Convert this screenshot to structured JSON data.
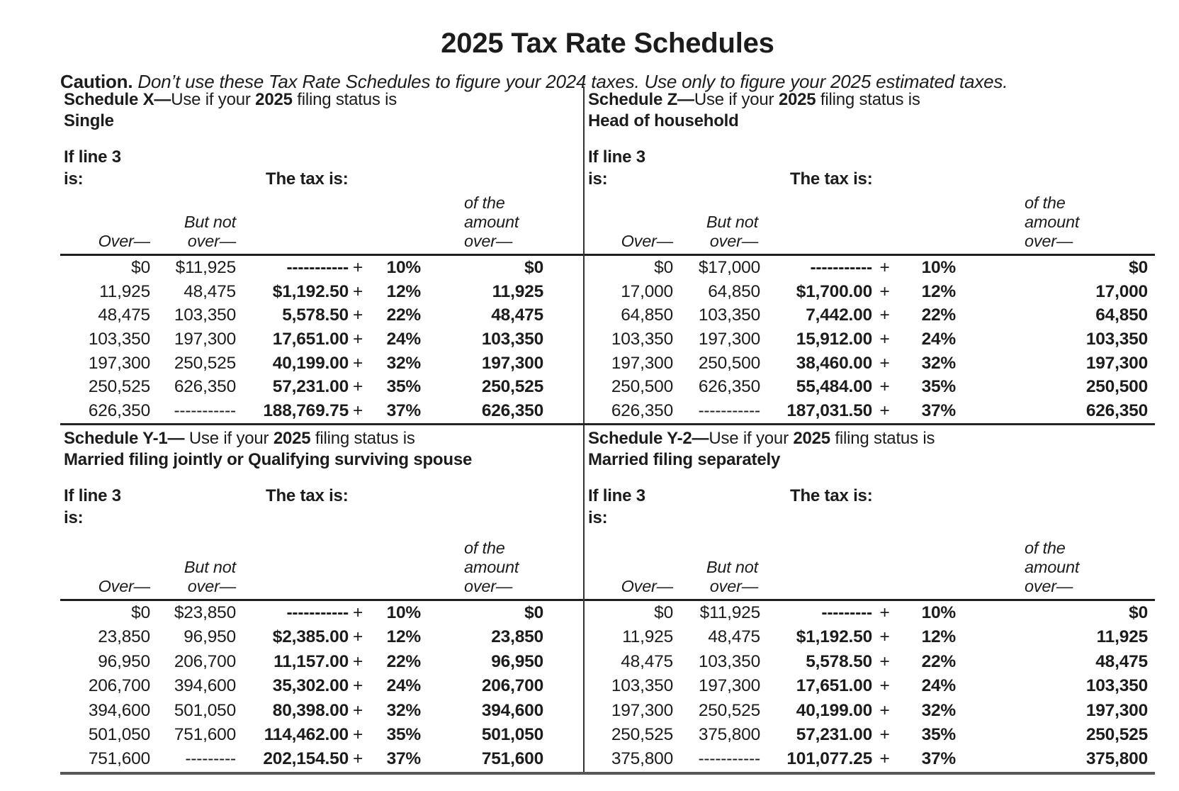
{
  "title": "2025 Tax Rate Schedules",
  "caution": {
    "label": "Caution.",
    "text": " Don’t use these Tax Rate Schedules to figure your 2024 taxes. Use only to figure your 2025 estimated taxes."
  },
  "labels": {
    "if_line": "If line 3",
    "is": "is:",
    "tax_is": "The tax is:",
    "over_em": "Over—",
    "but_not": "But not",
    "over_dash": "over—",
    "of_the": "of the",
    "amount": "amount",
    "plus": "+"
  },
  "schedules": [
    {
      "title_bold": "Schedule X—",
      "title_mid": "Use if your ",
      "title_year": "2025",
      "title_rest": " filing status is",
      "status": "Single",
      "rows": [
        {
          "over": "$0",
          "but_not": "$11,925",
          "base": "-----------",
          "rate": "10%",
          "of_amount": "$0"
        },
        {
          "over": "11,925",
          "but_not": "48,475",
          "base": "$1,192.50",
          "rate": "12%",
          "of_amount": "11,925"
        },
        {
          "over": "48,475",
          "but_not": "103,350",
          "base": "5,578.50",
          "rate": "22%",
          "of_amount": "48,475"
        },
        {
          "over": "103,350",
          "but_not": "197,300",
          "base": "17,651.00",
          "rate": "24%",
          "of_amount": "103,350"
        },
        {
          "over": "197,300",
          "but_not": "250,525",
          "base": "40,199.00",
          "rate": "32%",
          "of_amount": "197,300"
        },
        {
          "over": "250,525",
          "but_not": "626,350",
          "base": "57,231.00",
          "rate": "35%",
          "of_amount": "250,525"
        },
        {
          "over": "626,350",
          "but_not": "-----------",
          "base": "188,769.75",
          "rate": "37%",
          "of_amount": "626,350"
        }
      ]
    },
    {
      "title_bold": "Schedule Z—",
      "title_mid": "Use if your ",
      "title_year": "2025",
      "title_rest": " filing status is",
      "status": "Head of household",
      "rows": [
        {
          "over": "$0",
          "but_not": "$17,000",
          "base": "-----------",
          "rate": "10%",
          "of_amount": "$0"
        },
        {
          "over": "17,000",
          "but_not": "64,850",
          "base": "$1,700.00",
          "rate": "12%",
          "of_amount": "17,000"
        },
        {
          "over": "64,850",
          "but_not": "103,350",
          "base": "7,442.00",
          "rate": "22%",
          "of_amount": "64,850"
        },
        {
          "over": "103,350",
          "but_not": "197,300",
          "base": "15,912.00",
          "rate": "24%",
          "of_amount": "103,350"
        },
        {
          "over": "197,300",
          "but_not": "250,500",
          "base": "38,460.00",
          "rate": "32%",
          "of_amount": "197,300"
        },
        {
          "over": "250,500",
          "but_not": "626,350",
          "base": "55,484.00",
          "rate": "35%",
          "of_amount": "250,500"
        },
        {
          "over": "626,350",
          "but_not": "-----------",
          "base": "187,031.50",
          "rate": "37%",
          "of_amount": "626,350"
        }
      ]
    },
    {
      "title_bold": "Schedule Y-1—",
      "title_mid": " Use if your ",
      "title_year": "2025",
      "title_rest": " filing status is",
      "status": "Married filing jointly or Qualifying surviving spouse",
      "rows": [
        {
          "over": "$0",
          "but_not": "$23,850",
          "base": "-----------",
          "rate": "10%",
          "of_amount": "$0"
        },
        {
          "over": "23,850",
          "but_not": "96,950",
          "base": "$2,385.00",
          "rate": "12%",
          "of_amount": "23,850"
        },
        {
          "over": "96,950",
          "but_not": "206,700",
          "base": "11,157.00",
          "rate": "22%",
          "of_amount": "96,950"
        },
        {
          "over": "206,700",
          "but_not": "394,600",
          "base": "35,302.00",
          "rate": "24%",
          "of_amount": "206,700"
        },
        {
          "over": "394,600",
          "but_not": "501,050",
          "base": "80,398.00",
          "rate": "32%",
          "of_amount": "394,600"
        },
        {
          "over": "501,050",
          "but_not": "751,600",
          "base": "114,462.00",
          "rate": "35%",
          "of_amount": "501,050"
        },
        {
          "over": "751,600",
          "but_not": "---------",
          "base": "202,154.50",
          "rate": "37%",
          "of_amount": "751,600"
        }
      ]
    },
    {
      "title_bold": "Schedule Y-2—",
      "title_mid": "Use if your ",
      "title_year": "2025",
      "title_rest": " filing status is",
      "status": "Married filing separately",
      "rows": [
        {
          "over": "$0",
          "but_not": "$11,925",
          "base": "---------",
          "rate": "10%",
          "of_amount": "$0"
        },
        {
          "over": "11,925",
          "but_not": "48,475",
          "base": "$1,192.50",
          "rate": "12%",
          "of_amount": "11,925"
        },
        {
          "over": "48,475",
          "but_not": "103,350",
          "base": "5,578.50",
          "rate": "22%",
          "of_amount": "48,475"
        },
        {
          "over": "103,350",
          "but_not": "197,300",
          "base": "17,651.00",
          "rate": "24%",
          "of_amount": "103,350"
        },
        {
          "over": "197,300",
          "but_not": "250,525",
          "base": "40,199.00",
          "rate": "32%",
          "of_amount": "197,300"
        },
        {
          "over": "250,525",
          "but_not": "375,800",
          "base": "57,231.00",
          "rate": "35%",
          "of_amount": "250,525"
        },
        {
          "over": "375,800",
          "but_not": "-----------",
          "base": "101,077.25",
          "rate": "37%",
          "of_amount": "375,800"
        }
      ]
    }
  ]
}
